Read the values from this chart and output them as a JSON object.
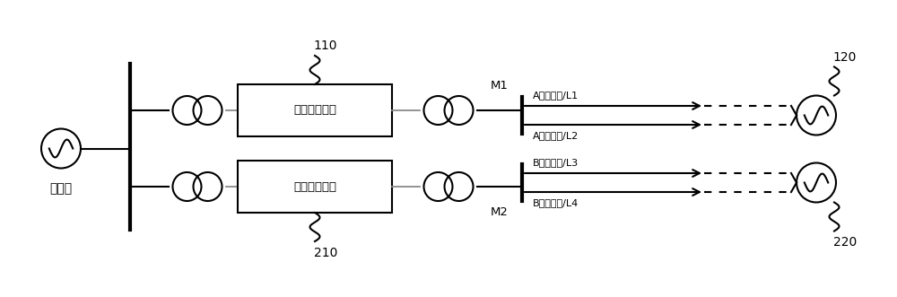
{
  "bg_color": "#ffffff",
  "line_color": "#000000",
  "fig_width": 10.0,
  "fig_height": 3.31,
  "dpi": 100,
  "labels": {
    "da_dian_wang": "大电网",
    "unit1": "第一柔直单元",
    "unit2": "第二柔直单元",
    "label_110": "110",
    "label_210": "210",
    "label_120": "120",
    "label_220": "220",
    "m1": "M1",
    "m2": "M2",
    "l1": "A侧线路甲/L1",
    "l2": "A侧线路乙/L2",
    "l3": "B侧线路甲/L3",
    "l4": "B侧线路乙/L4"
  }
}
